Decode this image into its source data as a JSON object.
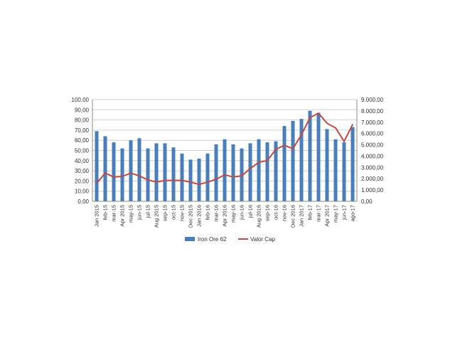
{
  "chart_data": {
    "type": "bar",
    "title": "",
    "xlabel": "",
    "ylabel": "",
    "y2label": "",
    "categories": [
      "Jan 2015",
      "feb-15",
      "mar-15",
      "Apr 2015",
      "may-15",
      "jun-15",
      "jul-15",
      "Aug 2015",
      "sep-15",
      "oct-15",
      "nov-15",
      "Dec 2015",
      "Jan 2016",
      "feb-16",
      "mar-16",
      "Apr 2016",
      "may-16",
      "jun-16",
      "jul-16",
      "Aug 2016",
      "sep-16",
      "oct-16",
      "nov-16",
      "Dec 2016",
      "Jan 2017",
      "feb-17",
      "mar-17",
      "Apr 2017",
      "may-17",
      "jun-17",
      "ago-17"
    ],
    "ylim": [
      0,
      100
    ],
    "y2lim": [
      0,
      9000
    ],
    "y_ticks": [
      "0,00",
      "10,00",
      "20,00",
      "30,00",
      "40,00",
      "50,00",
      "60,00",
      "70,00",
      "80,00",
      "90,00",
      "100,00"
    ],
    "y2_ticks": [
      "0,00",
      "1.000,00",
      "2.000,00",
      "3.000,00",
      "4.000,00",
      "5.000,00",
      "6.000,00",
      "7.000,00",
      "8.000,00",
      "9.000,00"
    ],
    "grid": true,
    "legend_position": "bottom",
    "series": [
      {
        "name": "Iron Ore 62",
        "type": "bar",
        "axis": "left",
        "color": "#4a7ebb",
        "values": [
          69,
          64,
          58,
          52,
          60,
          62,
          52,
          57,
          57,
          53,
          47,
          41,
          42,
          47,
          56,
          61,
          56,
          52,
          57,
          61,
          58,
          59,
          74,
          79,
          81,
          89,
          87,
          71,
          61,
          58,
          73
        ]
      },
      {
        "name": "Valor Cap",
        "type": "line",
        "axis": "right",
        "color": "#be4b48",
        "values": [
          1600,
          2500,
          2150,
          2200,
          2500,
          2250,
          1900,
          1700,
          1850,
          1850,
          1850,
          1700,
          1500,
          1700,
          1950,
          2350,
          2150,
          2250,
          2900,
          3450,
          3600,
          4600,
          4950,
          4650,
          5900,
          7400,
          7800,
          6900,
          6500,
          5300,
          6800
        ]
      }
    ]
  }
}
